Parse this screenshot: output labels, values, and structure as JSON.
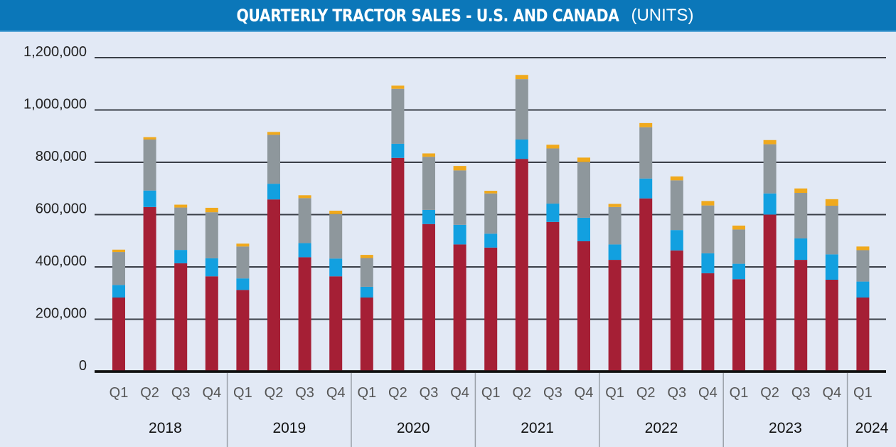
{
  "title": {
    "main": "QUARTERLY TRACTOR SALES - U.S. AND CANADA",
    "unit": "(UNITS)"
  },
  "colors": {
    "banner": "#0b77b9",
    "background": "#e2e9f5",
    "series": [
      "#a51f35",
      "#12a0e0",
      "#8e979c",
      "#f0a91c"
    ]
  },
  "chart_data": {
    "type": "bar",
    "stacked": true,
    "title": "QUARTERLY TRACTOR SALES - U.S. AND CANADA (UNITS)",
    "xlabel": "",
    "ylabel": "",
    "ylim": [
      0,
      1200000
    ],
    "yticks": [
      0,
      200000,
      400000,
      600000,
      800000,
      1000000,
      1200000
    ],
    "ytick_labels": [
      "0",
      "200,000",
      "400,000",
      "600,000",
      "800,000",
      "1,000,000",
      "1,200,000"
    ],
    "grid": true,
    "legend": "none",
    "years": [
      {
        "label": "2018",
        "quarters": [
          "Q1",
          "Q2",
          "Q3",
          "Q4"
        ]
      },
      {
        "label": "2019",
        "quarters": [
          "Q1",
          "Q2",
          "Q3",
          "Q4"
        ]
      },
      {
        "label": "2020",
        "quarters": [
          "Q1",
          "Q2",
          "Q3",
          "Q4"
        ]
      },
      {
        "label": "2021",
        "quarters": [
          "Q1",
          "Q2",
          "Q3",
          "Q4"
        ]
      },
      {
        "label": "2022",
        "quarters": [
          "Q1",
          "Q2",
          "Q3",
          "Q4"
        ]
      },
      {
        "label": "2023",
        "quarters": [
          "Q1",
          "Q2",
          "Q3",
          "Q4"
        ]
      },
      {
        "label": "2024",
        "quarters": [
          "Q1"
        ]
      }
    ],
    "series": [
      {
        "color": "#a51f35",
        "values": [
          283000,
          629000,
          414000,
          364000,
          312000,
          658000,
          437000,
          364000,
          283000,
          817000,
          564000,
          486000,
          474000,
          813000,
          572000,
          498000,
          427000,
          662000,
          463000,
          376000,
          353000,
          600000,
          427000,
          351000,
          283000
        ]
      },
      {
        "color": "#12a0e0",
        "values": [
          48000,
          63000,
          51000,
          69000,
          44000,
          60000,
          54000,
          68000,
          41000,
          54000,
          54000,
          75000,
          53000,
          74000,
          70000,
          90000,
          59000,
          76000,
          78000,
          76000,
          59000,
          81000,
          82000,
          97000,
          61000
        ]
      },
      {
        "color": "#8e979c",
        "values": [
          126000,
          195000,
          162000,
          176000,
          122000,
          187000,
          172000,
          170000,
          110000,
          210000,
          203000,
          208000,
          154000,
          231000,
          211000,
          213000,
          143000,
          196000,
          190000,
          183000,
          131000,
          188000,
          174000,
          186000,
          120000
        ]
      },
      {
        "color": "#f0a91c",
        "values": [
          9000,
          9000,
          11000,
          17000,
          11000,
          11000,
          11000,
          13000,
          12000,
          12000,
          13000,
          17000,
          10000,
          16000,
          14000,
          17000,
          12000,
          16000,
          15000,
          17000,
          15000,
          16000,
          17000,
          25000,
          14000
        ]
      }
    ]
  }
}
